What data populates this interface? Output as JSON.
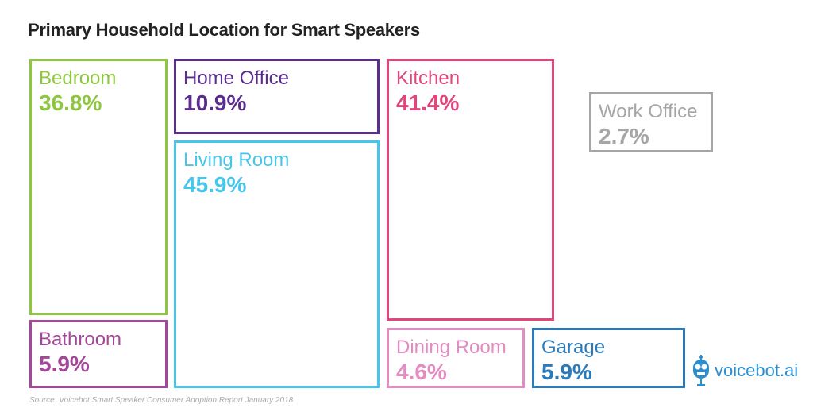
{
  "chart_data": {
    "type": "treemap",
    "title": "Primary Household Location for Smart Speakers",
    "source": "Source: Voicebot Smart Speaker Consumer Adoption Report January 2018",
    "items": [
      {
        "id": "bedroom",
        "label": "Bedroom",
        "value": 36.8,
        "display": "36.8%",
        "color": "#8dc63f"
      },
      {
        "id": "bathroom",
        "label": "Bathroom",
        "value": 5.9,
        "display": "5.9%",
        "color": "#a3479a"
      },
      {
        "id": "home-office",
        "label": "Home Office",
        "value": 10.9,
        "display": "10.9%",
        "color": "#5b2d8e"
      },
      {
        "id": "living-room",
        "label": "Living Room",
        "value": 45.9,
        "display": "45.9%",
        "color": "#45c6ea"
      },
      {
        "id": "kitchen",
        "label": "Kitchen",
        "value": 41.4,
        "display": "41.4%",
        "color": "#e2447c"
      },
      {
        "id": "dining-room",
        "label": "Dining Room",
        "value": 4.6,
        "display": "4.6%",
        "color": "#e38cc2"
      },
      {
        "id": "garage",
        "label": "Garage",
        "value": 5.9,
        "display": "5.9%",
        "color": "#2b7bbb"
      },
      {
        "id": "work-office",
        "label": "Work Office",
        "value": 2.7,
        "display": "2.7%",
        "color": "#a6a6a6"
      }
    ]
  },
  "logo": {
    "text": "voicebot.ai"
  }
}
